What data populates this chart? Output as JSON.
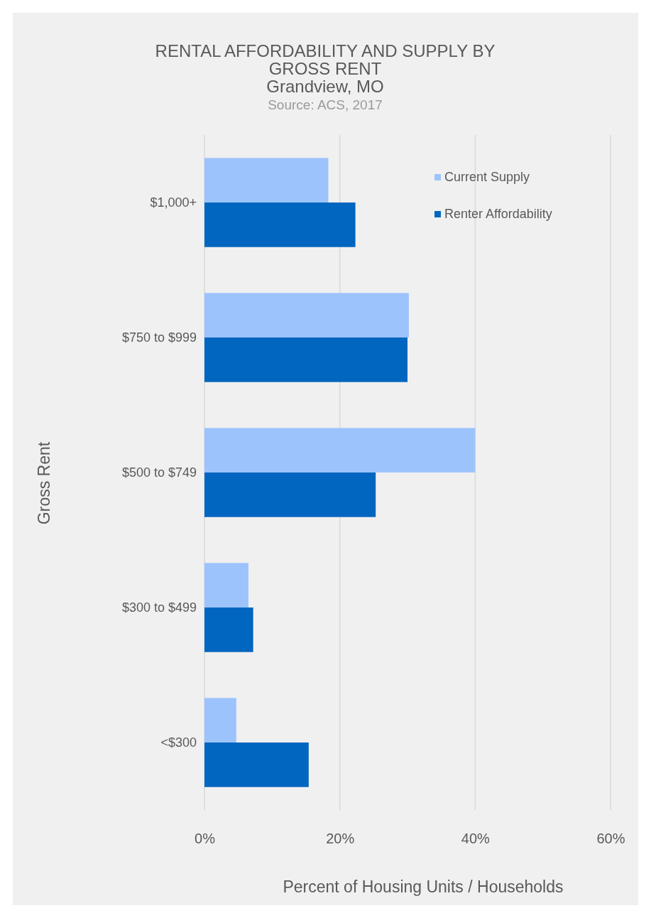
{
  "chart_data": {
    "type": "bar",
    "orientation": "horizontal",
    "title": "RENTAL AFFORDABILITY AND SUPPLY BY GROSS RENT",
    "subtitle": "Grandview, MO",
    "annotations": [
      "Source: ACS, 2017"
    ],
    "xlabel": "Percent of Housing Units / Households",
    "ylabel": "Gross Rent",
    "categories": [
      "$1,000+",
      "$750 to $999",
      "$500 to $749",
      "$300 to $499",
      "<$300"
    ],
    "series": [
      {
        "name": "Current Supply",
        "color": "#9dc3fd",
        "values": [
          18.3,
          30.2,
          40,
          6.5,
          4.7
        ]
      },
      {
        "name": "Renter Affordability",
        "color": "#0066bf",
        "values": [
          22.3,
          30,
          25.3,
          7.2,
          15.4
        ]
      }
    ],
    "xlim": [
      0,
      60
    ],
    "xticks": [
      {
        "value": 0,
        "label": "0%"
      },
      {
        "value": 20,
        "label": "20%"
      },
      {
        "value": 40,
        "label": "40%"
      },
      {
        "value": 60,
        "label": "60%"
      }
    ],
    "grid": "x",
    "legend": "top right"
  }
}
